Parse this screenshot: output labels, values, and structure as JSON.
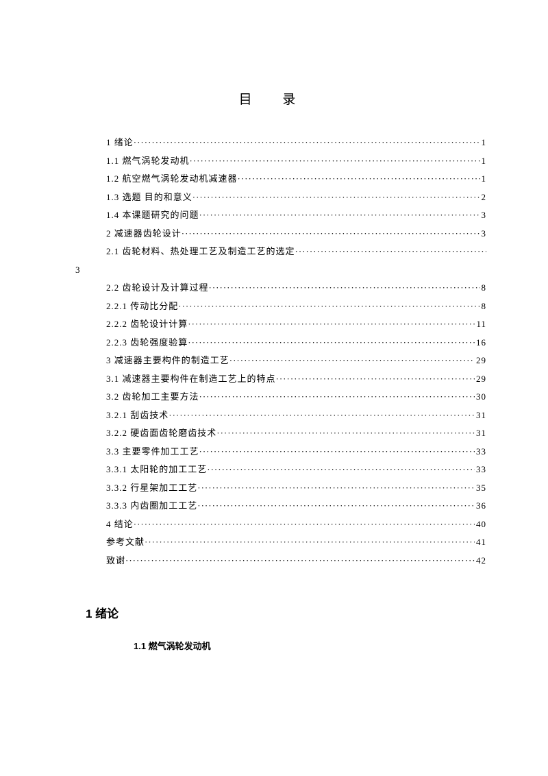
{
  "toc_title": "目 录",
  "entries": [
    {
      "label": "1  绪论",
      "page": " 1",
      "wrapped": false
    },
    {
      "label": "1.1 燃气涡轮发动机 ",
      "page": " 1",
      "wrapped": false
    },
    {
      "label": "1.2 航空燃气涡轮发动机减速器  ",
      "page": " 1",
      "wrapped": false
    },
    {
      "label": "1.3 选题 目的和意义 ",
      "page": "2",
      "wrapped": false
    },
    {
      "label": "1.4 本课题研究的问题 ",
      "page": " 3",
      "wrapped": false
    },
    {
      "label": "2 减速器齿轮设计 ",
      "page": " 3",
      "wrapped": false
    },
    {
      "label": "2.1 齿轮材料、热处理工艺及制造工艺的选定  ",
      "page": "3",
      "wrapped": true
    },
    {
      "label": "2.2 齿轮设计及计算过程  ",
      "page": " 8",
      "wrapped": false
    },
    {
      "label": "2.2.1 传动比分配  ",
      "page": " 8",
      "wrapped": false
    },
    {
      "label": "2.2.2 齿轮设计计算 ",
      "page": " 11",
      "wrapped": false
    },
    {
      "label": "2.2.3 齿轮强度验算",
      "page": " 16",
      "wrapped": false
    },
    {
      "label": "3 减速器主要构件的制造工艺",
      "page": " 29",
      "wrapped": false
    },
    {
      "label": "3.1 减速器主要构件在制造工艺上的特点",
      "page": "29",
      "wrapped": false
    },
    {
      "label": "3.2 齿轮加工主要方法",
      "page": "30",
      "wrapped": false
    },
    {
      "label": "3.2.1 刮齿技术 ",
      "page": " 31",
      "wrapped": false
    },
    {
      "label": "3.2.2 硬齿面齿轮磨齿技术",
      "page": " 31",
      "wrapped": false
    },
    {
      "label": "3.3 主要零件加工工艺 ",
      "page": " 33",
      "wrapped": false
    },
    {
      "label": "3.3.1 太阳轮的加工工艺",
      "page": " 33",
      "wrapped": false
    },
    {
      "label": "3.3.2 行星架加工工艺 ",
      "page": " 35",
      "wrapped": false
    },
    {
      "label": "3.3.3 内齿圈加工工艺",
      "page": " 36",
      "wrapped": false
    },
    {
      "label": "4 结论 ",
      "page": " 40",
      "wrapped": false
    },
    {
      "label": "参考文献",
      "page": "41",
      "wrapped": false
    },
    {
      "label": "致谢 ",
      "page": " 42",
      "wrapped": false
    }
  ],
  "section_heading": "1 绪论",
  "subsection_heading": "1.1 燃气涡轮发动机",
  "colors": {
    "background": "#ffffff",
    "text": "#000000"
  },
  "typography": {
    "toc_title_fontsize": 19,
    "toc_entry_fontsize": 13,
    "section_heading_fontsize": 17,
    "subsection_heading_fontsize": 13,
    "line_height": 2.04,
    "font_family_body": "SimSun",
    "font_family_heading": "SimHei"
  }
}
